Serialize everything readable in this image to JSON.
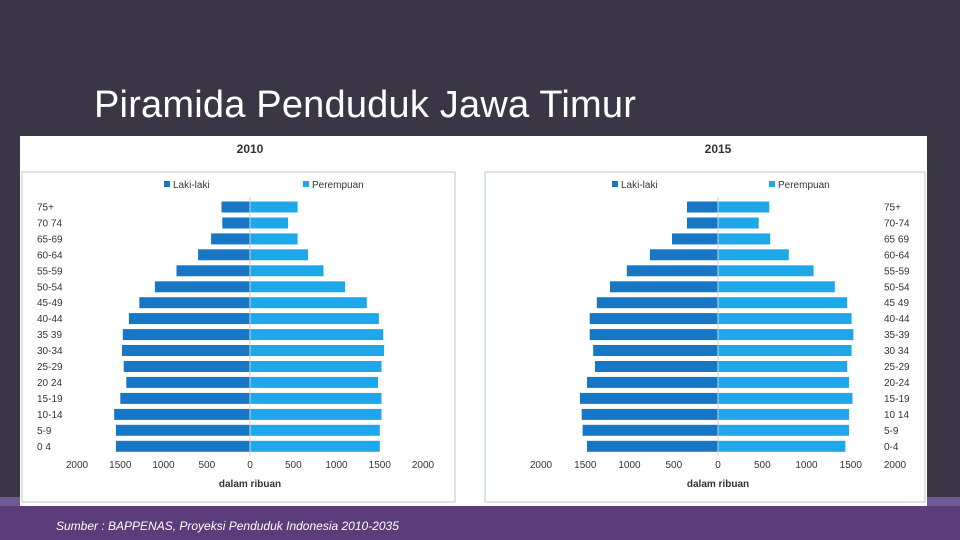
{
  "slide": {
    "title": "Piramida Penduduk Jawa Timur",
    "source": "Sumber : BAPPENAS, Proyeksi Penduduk Indonesia 2010-2035"
  },
  "colors": {
    "male": "#1877c4",
    "female": "#1ea8ea",
    "background": "#3a3646",
    "band": "#5a3d7a"
  },
  "chart_data": [
    {
      "type": "bar",
      "title": "2010",
      "xlabel": "dalam ribuan",
      "xlim": [
        -2000,
        2000
      ],
      "xticks": [
        "2000",
        "1500",
        "1000",
        "500",
        "0",
        "500",
        "1000",
        "1500",
        "2000"
      ],
      "categories": [
        "75+",
        "70 74",
        "65-69",
        "60-64",
        "55-59",
        "50-54",
        "45-49",
        "40-44",
        "35 39",
        "30-34",
        "25-29",
        "20 24",
        "15-19",
        "10-14",
        "5-9",
        "0 4"
      ],
      "series": [
        {
          "name": "Laki-laki",
          "values": [
            330,
            320,
            450,
            600,
            850,
            1100,
            1280,
            1400,
            1470,
            1480,
            1460,
            1430,
            1500,
            1570,
            1550,
            1550
          ]
        },
        {
          "name": "Perempuan",
          "values": [
            550,
            440,
            550,
            670,
            850,
            1100,
            1350,
            1490,
            1540,
            1550,
            1520,
            1480,
            1520,
            1520,
            1500,
            1500
          ]
        }
      ],
      "legend": "top"
    },
    {
      "type": "bar",
      "title": "2015",
      "xlabel": "dalam ribuan",
      "xlim": [
        -2000,
        2000
      ],
      "xticks": [
        "2000",
        "1500",
        "1000",
        "500",
        "0",
        "500",
        "1000",
        "1500",
        "2000"
      ],
      "categories": [
        "75+",
        "70-74",
        "65 69",
        "60-64",
        "55-59",
        "50-54",
        "45 49",
        "40-44",
        "35-39",
        "30 34",
        "25-29",
        "20-24",
        "15-19",
        "10 14",
        "5-9",
        "0-4"
      ],
      "series": [
        {
          "name": "Laki-laki",
          "values": [
            350,
            350,
            520,
            770,
            1030,
            1220,
            1370,
            1450,
            1450,
            1410,
            1390,
            1480,
            1560,
            1540,
            1530,
            1480
          ]
        },
        {
          "name": "Perempuan",
          "values": [
            580,
            460,
            590,
            800,
            1080,
            1320,
            1460,
            1510,
            1530,
            1510,
            1460,
            1480,
            1520,
            1480,
            1480,
            1440
          ]
        }
      ],
      "legend": "top"
    }
  ]
}
